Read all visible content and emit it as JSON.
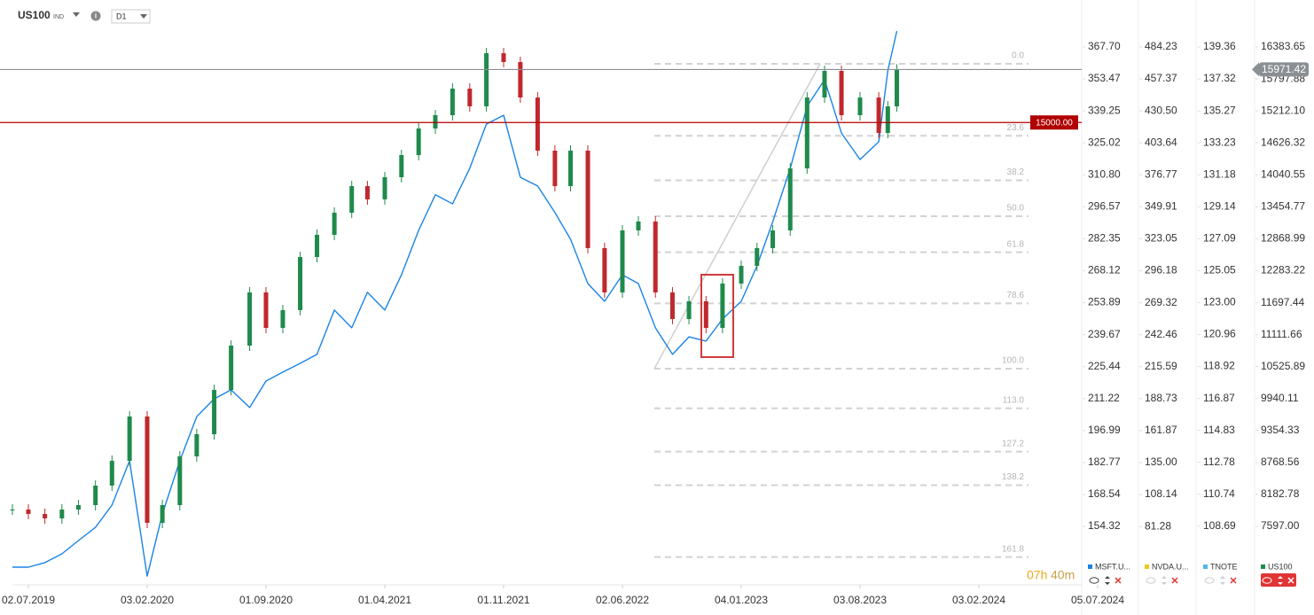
{
  "header": {
    "symbol": "US100",
    "kind": "IND",
    "timeframe": "D1"
  },
  "timer": {
    "hours": "07h",
    "minutes": "40m"
  },
  "chart_data": {
    "type": "candlestick-overlay",
    "x": [
      "03.06.2019",
      "02.07.2019",
      "01.08.2019",
      "01.09.2019",
      "01.10.2019",
      "01.11.2019",
      "01.12.2019",
      "02.01.2020",
      "03.02.2020",
      "01.03.2020",
      "01.04.2020",
      "01.05.2020",
      "01.06.2020",
      "01.07.2020",
      "03.08.2020",
      "01.09.2020",
      "01.10.2020",
      "01.11.2020",
      "01.12.2020",
      "01.01.2021",
      "01.02.2021",
      "01.03.2021",
      "01.04.2021",
      "01.05.2021",
      "01.06.2021",
      "01.07.2021",
      "01.08.2021",
      "01.09.2021",
      "01.10.2021",
      "01.11.2021",
      "01.12.2021",
      "01.01.2022",
      "01.02.2022",
      "01.03.2022",
      "01.04.2022",
      "01.05.2022",
      "02.06.2022",
      "01.07.2022",
      "01.08.2022",
      "01.09.2022",
      "01.10.2022",
      "01.11.2022",
      "01.12.2022",
      "04.01.2023",
      "01.02.2023",
      "01.03.2023",
      "01.04.2023",
      "01.05.2023",
      "01.06.2023",
      "01.07.2023",
      "03.08.2023",
      "01.09.2023",
      "15.09.2023",
      "29.09.2023"
    ],
    "xlim": [
      "03.06.2019",
      "05.07.2024"
    ],
    "xticks": [
      "02.07.2019",
      "03.02.2020",
      "01.09.2020",
      "01.04.2021",
      "01.11.2021",
      "02.06.2022",
      "04.01.2023",
      "03.08.2023",
      "03.02.2024",
      "05.07.2024"
    ],
    "price_axes": [
      {
        "ylim": [
          128.3,
          388.6
        ],
        "ticks": [
          {
            "value": 367.7,
            "label": "367.70"
          },
          353.47,
          339.25,
          325.02,
          {
            "value": 310.8,
            "label": "310.80"
          },
          296.57,
          282.35,
          268.12,
          253.89,
          239.67,
          225.44,
          211.22,
          196.99,
          182.77,
          168.54,
          154.32
        ]
      },
      {
        "ylim": [
          32.2,
          523.7
        ],
        "ticks": [
          484.23,
          457.37,
          {
            "value": 430.5,
            "label": "430.50"
          },
          403.64,
          376.77,
          349.91,
          323.05,
          296.18,
          269.32,
          242.46,
          215.59,
          188.73,
          161.87,
          {
            "value": 135,
            "label": "135.00"
          },
          108.14,
          81.28
        ]
      },
      {
        "ylim": [
          104.94,
          142.37
        ],
        "ticks": [
          139.36,
          137.32,
          135.27,
          133.23,
          131.18,
          129.14,
          127.09,
          125.05,
          {
            "value": 123,
            "label": "123.00"
          },
          120.96,
          118.92,
          116.87,
          114.83,
          112.78,
          110.74,
          108.69
        ]
      },
      {
        "ylim": [
          6526,
          17245
        ],
        "ticks": [
          16383.65,
          15797.88,
          {
            "value": 15212.1,
            "label": "15212.10"
          },
          14626.32,
          14040.55,
          13454.77,
          12868.99,
          12283.22,
          11697.44,
          11111.66,
          10525.89,
          9940.11,
          9354.33,
          8768.56,
          8182.78,
          {
            "value": 7597,
            "label": "7597.00"
          }
        ]
      }
    ],
    "series": [
      {
        "name": "MSFT.U...",
        "color": "#1a84e6",
        "axis": 0,
        "style": "line",
        "values": [
          136.2,
          136.2,
          138.2,
          142.1,
          148.0,
          153.9,
          163.8,
          183.5,
          132.2,
          159.8,
          183.5,
          203.2,
          211.1,
          215.1,
          207.2,
          219.0,
          223.0,
          226.9,
          230.9,
          250.6,
          242.7,
          258.5,
          250.6,
          266.3,
          286.1,
          301.9,
          297.9,
          313.7,
          333.4,
          337.3,
          309.7,
          305.8,
          294.0,
          282.1,
          262.4,
          254.5,
          266.3,
          262.4,
          242.7,
          230.9,
          238.7,
          236.8,
          246.6,
          254.5,
          270.3,
          290.0,
          313.7,
          341.3,
          353.1,
          329.4,
          317.6,
          325.5,
          357.1,
          374.8
        ]
      },
      {
        "name": "NVDA.U...",
        "color": "#f2c624",
        "axis": 1,
        "visible": false
      },
      {
        "name": "TNOTE",
        "color": "#4fb8ec",
        "axis": 2,
        "visible": false
      },
      {
        "name": "US100",
        "color": "#1f8a4c",
        "down_color": "#c0282d",
        "axis": 3,
        "style": "candles",
        "values": [
          7907,
          7826,
          7744,
          7907,
          7988,
          8345,
          8800,
          9612,
          7663,
          7988,
          8881,
          9287,
          10099,
          10911,
          11886,
          11236,
          11561,
          12535,
          12941,
          13347,
          13834,
          13591,
          13997,
          14403,
          14890,
          15134,
          15621,
          15296,
          16270,
          16108,
          15458,
          14484,
          13834,
          14484,
          12698,
          11886,
          13022,
          13185,
          11886,
          11398,
          11723,
          11236,
          12048,
          12373,
          12698,
          13022,
          14159,
          15458,
          15945,
          15134,
          15458,
          14809,
          15296,
          15971
        ]
      }
    ],
    "price_lines": [
      {
        "value": 15971.42,
        "color": "#8a8f94"
      },
      {
        "value": 15000,
        "label": "15000.00",
        "color": "#b00000"
      }
    ],
    "fibonacci": {
      "from": 10488,
      "to": 16075,
      "color": "#d2d2d2",
      "levels": [
        {
          "value": 0,
          "label": "0.0"
        },
        23.6,
        38.2,
        {
          "value": 50,
          "label": "50.0"
        },
        61.8,
        78.6,
        {
          "value": 100,
          "label": "100.0"
        },
        {
          "value": 113,
          "label": "113.0"
        },
        127.2,
        138.2,
        161.8
      ]
    }
  }
}
